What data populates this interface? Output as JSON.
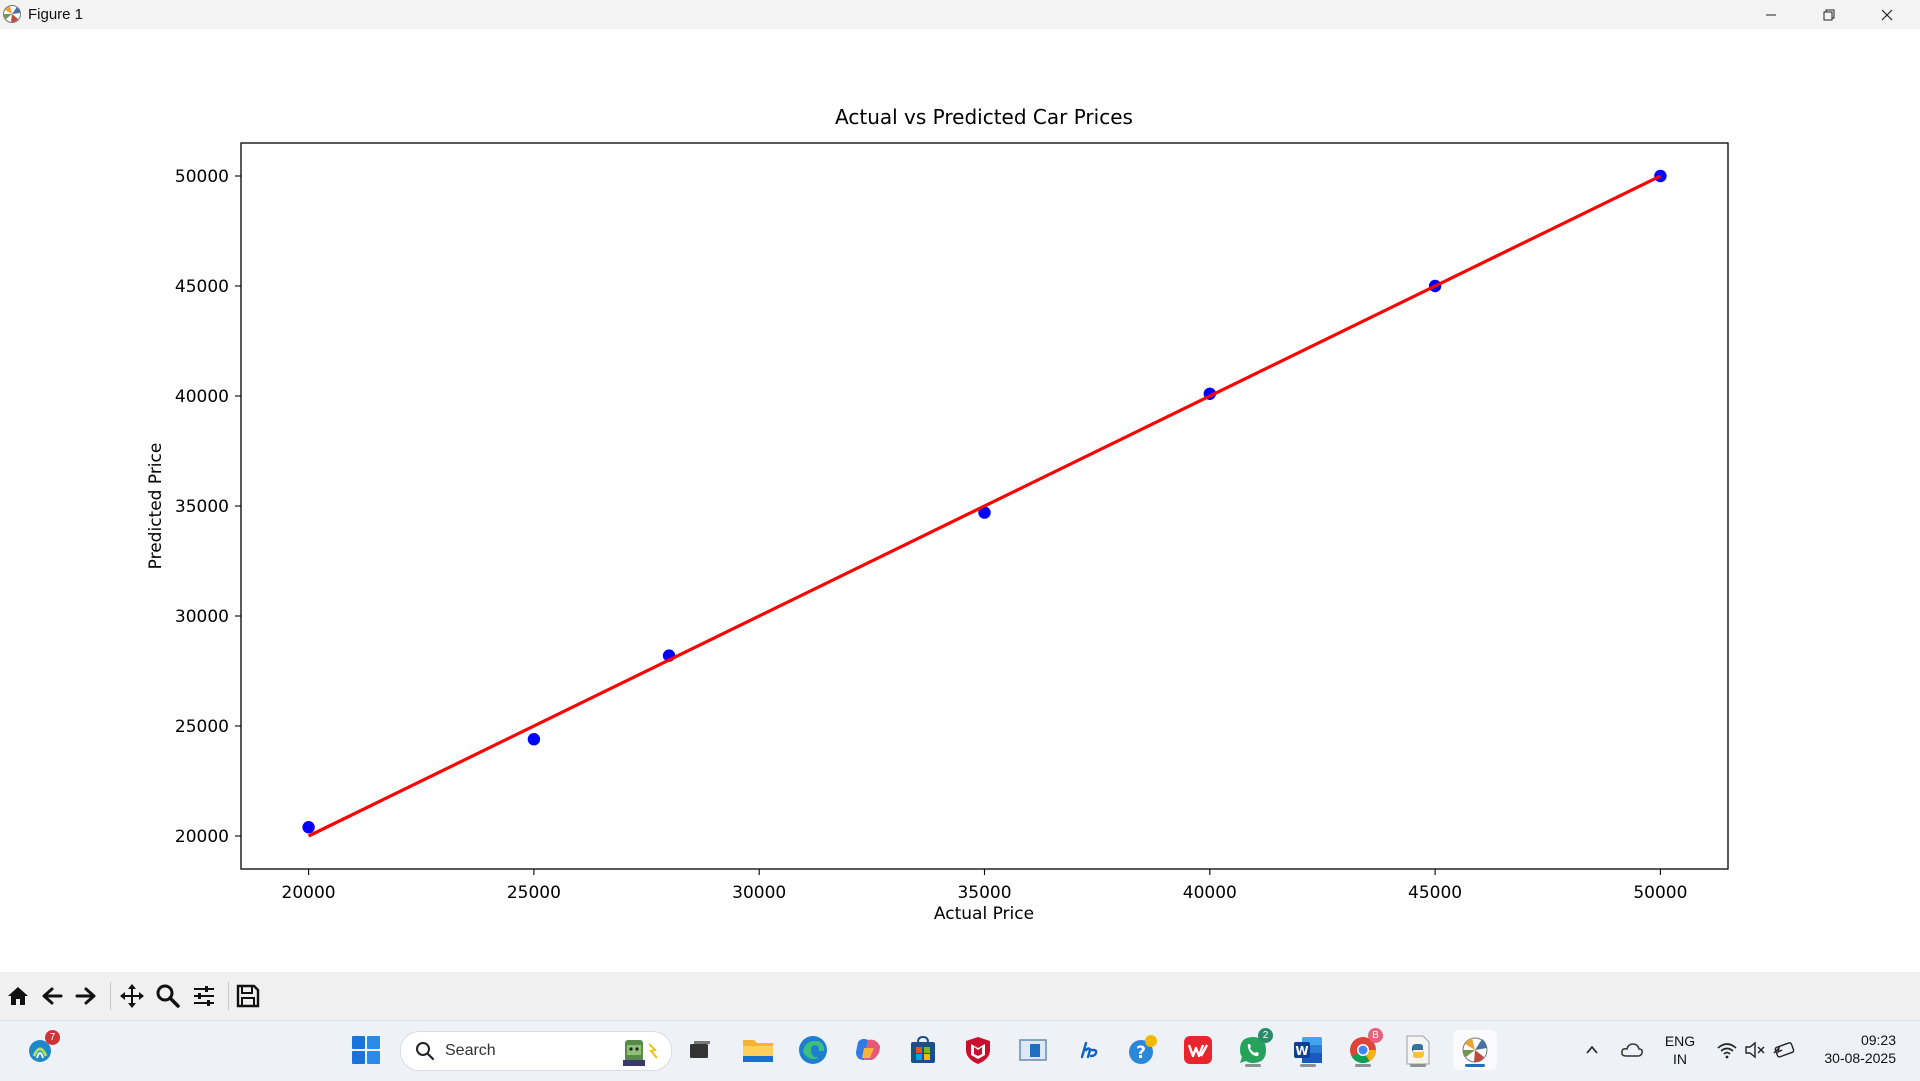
{
  "window": {
    "title": "Figure 1"
  },
  "chart_data": {
    "type": "scatter",
    "title": "Actual vs Predicted Car Prices",
    "xlabel": "Actual Price",
    "ylabel": "Predicted Price",
    "xlim": [
      18500,
      51500
    ],
    "ylim": [
      18500,
      51500
    ],
    "xticks": [
      20000,
      25000,
      30000,
      35000,
      40000,
      45000,
      50000
    ],
    "yticks": [
      20000,
      25000,
      30000,
      35000,
      40000,
      45000,
      50000
    ],
    "xtick_labels": [
      "20000",
      "25000",
      "30000",
      "35000",
      "40000",
      "45000",
      "50000"
    ],
    "ytick_labels": [
      "20000",
      "25000",
      "30000",
      "35000",
      "40000",
      "45000",
      "50000"
    ],
    "grid": false,
    "series": [
      {
        "type": "scatter",
        "color": "#0000ff",
        "x": [
          20000,
          25000,
          28000,
          35000,
          40000,
          45000,
          50000
        ],
        "y": [
          20400,
          24400,
          28200,
          34700,
          40100,
          45000,
          50000
        ]
      },
      {
        "type": "line",
        "color": "#ff0000",
        "x": [
          20000,
          50000
        ],
        "y": [
          20000,
          50000
        ]
      }
    ]
  },
  "toolbar": {
    "buttons": [
      "home-icon",
      "back-icon",
      "forward-icon",
      "pan-icon",
      "zoom-icon",
      "configure-subplots-icon",
      "save-icon"
    ]
  },
  "taskbar": {
    "search_placeholder": "Search",
    "widgets_badge": "7",
    "whatsapp_badge": "2",
    "chrome_badge": "B",
    "language_line1": "ENG",
    "language_line2": "IN",
    "time": "09:23",
    "date": "30-08-2025"
  }
}
